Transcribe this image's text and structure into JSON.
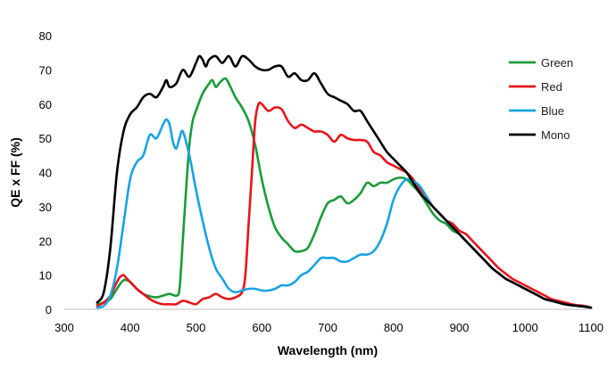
{
  "chart_data": {
    "type": "line",
    "xlabel": "Wavelength (nm)",
    "ylabel": "QE x FF (%)",
    "xlim": [
      300,
      1100
    ],
    "ylim": [
      0,
      80
    ],
    "xticks": [
      "300",
      "400",
      "500",
      "600",
      "700",
      "800",
      "900",
      "1000",
      "1100"
    ],
    "yticks": [
      "0",
      "10",
      "20",
      "30",
      "40",
      "50",
      "60",
      "70",
      "80"
    ],
    "grid": false,
    "legend_position": "top-right",
    "series": [
      {
        "name": "Green",
        "color": "#1a9b3a",
        "x": [
          350,
          360,
          370,
          380,
          390,
          400,
          410,
          420,
          430,
          440,
          450,
          460,
          470,
          475,
          480,
          485,
          490,
          495,
          500,
          510,
          520,
          525,
          530,
          535,
          540,
          545,
          550,
          560,
          570,
          580,
          590,
          600,
          610,
          620,
          630,
          640,
          650,
          660,
          670,
          680,
          690,
          700,
          710,
          720,
          730,
          740,
          750,
          760,
          770,
          780,
          790,
          800,
          810,
          820,
          830,
          840,
          850,
          860,
          870,
          880,
          890,
          900,
          910,
          920,
          930,
          940,
          950,
          960,
          970,
          980,
          990,
          1000,
          1010,
          1020,
          1030,
          1040,
          1050,
          1060,
          1070,
          1080,
          1090,
          1100
        ],
        "y": [
          1.5,
          2,
          3,
          6,
          8.5,
          8,
          6,
          4.5,
          3.8,
          3.5,
          4,
          4.5,
          4,
          6,
          20,
          35,
          48,
          55,
          58,
          63,
          66,
          67,
          65,
          66,
          67,
          67.5,
          66,
          62,
          59,
          55,
          48,
          38,
          30,
          24,
          21,
          19,
          17,
          17,
          18,
          22,
          27,
          31,
          32,
          33,
          31,
          32,
          34,
          37,
          36,
          37,
          37,
          38,
          38.5,
          38,
          36,
          34,
          31,
          28,
          26,
          25,
          23,
          22,
          20,
          18,
          16,
          14,
          12,
          10.5,
          9,
          8,
          7,
          6,
          5,
          4,
          3,
          2.5,
          2,
          1.5,
          1.2,
          1,
          0.8,
          0.5
        ]
      },
      {
        "name": "Red",
        "color": "#e8141c",
        "x": [
          350,
          360,
          370,
          380,
          385,
          390,
          395,
          400,
          410,
          420,
          430,
          440,
          450,
          460,
          470,
          480,
          490,
          500,
          510,
          520,
          530,
          540,
          550,
          560,
          570,
          575,
          580,
          585,
          590,
          595,
          600,
          610,
          620,
          630,
          640,
          650,
          660,
          670,
          680,
          690,
          700,
          710,
          720,
          730,
          740,
          750,
          760,
          770,
          780,
          790,
          800,
          810,
          820,
          830,
          840,
          850,
          860,
          870,
          880,
          890,
          900,
          910,
          920,
          930,
          940,
          950,
          960,
          970,
          980,
          990,
          1000,
          1010,
          1020,
          1030,
          1040,
          1050,
          1060,
          1070,
          1080,
          1090,
          1100
        ],
        "y": [
          1,
          2,
          4,
          8,
          9.5,
          10,
          9,
          8,
          6,
          4.5,
          3,
          2,
          1.5,
          1.5,
          1.5,
          2.5,
          2,
          1.5,
          3,
          3.5,
          4.5,
          3.5,
          3,
          3.5,
          5,
          10,
          25,
          40,
          55,
          60,
          60,
          58,
          59,
          58.5,
          55,
          53,
          54,
          53,
          52,
          52,
          51,
          49,
          51,
          50,
          49.5,
          49.5,
          49,
          46,
          45,
          43,
          42,
          41,
          40,
          38,
          35,
          33,
          30,
          28,
          26,
          25,
          23,
          22,
          20,
          18,
          16,
          14,
          12,
          10.5,
          9,
          8,
          7,
          6,
          5,
          4,
          3,
          2.5,
          2,
          1.5,
          1.2,
          1,
          0.5
        ]
      },
      {
        "name": "Blue",
        "color": "#18a4e0",
        "x": [
          350,
          360,
          370,
          380,
          390,
          400,
          410,
          420,
          430,
          440,
          450,
          455,
          460,
          465,
          470,
          475,
          480,
          490,
          500,
          510,
          520,
          530,
          540,
          550,
          560,
          570,
          580,
          590,
          600,
          610,
          620,
          630,
          640,
          650,
          660,
          670,
          680,
          690,
          700,
          710,
          720,
          730,
          740,
          750,
          760,
          770,
          780,
          790,
          800,
          810,
          820,
          830,
          840,
          850,
          860,
          870,
          880,
          890,
          900,
          910,
          920,
          930,
          940,
          950,
          960,
          970,
          980,
          990,
          1000,
          1010,
          1020,
          1030,
          1040,
          1050,
          1060,
          1070,
          1080,
          1090,
          1100
        ],
        "y": [
          0.5,
          1,
          4,
          12,
          25,
          38,
          43,
          45,
          51,
          50,
          54,
          55.5,
          54,
          49,
          47,
          50,
          52,
          45,
          35,
          26,
          18,
          12,
          9,
          6,
          5,
          5.5,
          6,
          6,
          5.5,
          5.5,
          6,
          7,
          7,
          8,
          10,
          11,
          13,
          15,
          15,
          15,
          14,
          14,
          15,
          16,
          16,
          17,
          20,
          25,
          32,
          36,
          38,
          37.5,
          36,
          33,
          30,
          28,
          26,
          24,
          22,
          20,
          18,
          16,
          14,
          12,
          10.5,
          9,
          8,
          7,
          6,
          5,
          4,
          3,
          2.5,
          2,
          1.5,
          1.2,
          1,
          0.8,
          0.5
        ]
      },
      {
        "name": "Mono",
        "color": "#000000",
        "x": [
          350,
          360,
          370,
          380,
          390,
          400,
          410,
          420,
          430,
          440,
          450,
          455,
          460,
          470,
          480,
          490,
          500,
          505,
          510,
          515,
          520,
          530,
          540,
          550,
          560,
          570,
          580,
          590,
          600,
          610,
          620,
          630,
          640,
          650,
          660,
          670,
          680,
          690,
          700,
          710,
          720,
          730,
          740,
          750,
          760,
          770,
          780,
          790,
          800,
          810,
          820,
          830,
          840,
          850,
          860,
          870,
          880,
          890,
          900,
          910,
          920,
          930,
          940,
          950,
          960,
          970,
          980,
          990,
          1000,
          1010,
          1020,
          1030,
          1040,
          1050,
          1060,
          1070,
          1080,
          1090,
          1100
        ],
        "y": [
          2,
          5,
          18,
          40,
          52,
          57,
          59,
          62,
          63,
          62,
          65,
          67,
          65,
          66,
          70,
          68,
          72,
          74,
          73,
          71,
          73,
          74,
          72,
          74,
          71,
          74,
          73,
          71,
          70,
          70,
          71,
          71,
          68,
          69,
          67,
          67,
          69,
          66,
          63,
          62,
          61,
          60,
          58,
          58,
          55,
          52,
          49,
          46,
          44,
          42,
          40,
          37,
          34,
          32,
          30,
          28,
          26,
          24,
          22,
          20,
          18,
          16,
          14,
          12,
          10.5,
          9,
          8,
          7,
          6,
          5,
          4,
          3,
          2.5,
          2,
          1.5,
          1.2,
          1,
          0.8,
          0.5
        ]
      }
    ]
  }
}
